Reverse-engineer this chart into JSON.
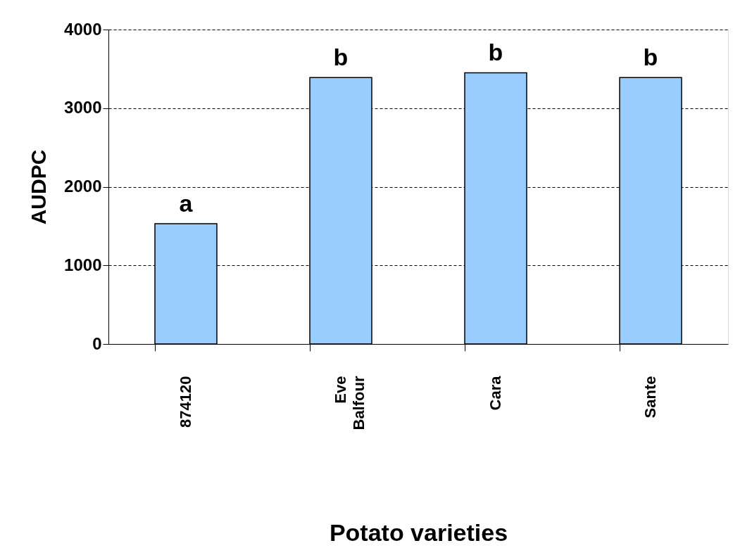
{
  "chart_data": {
    "type": "bar",
    "xlabel": "Potato varieties",
    "ylabel": "AUDPC",
    "categories": [
      "874120",
      "Eve Balfour",
      "Cara",
      "Sante"
    ],
    "values": [
      1530,
      3390,
      3450,
      3390
    ],
    "color": "#99ccff",
    "ylim": [
      0,
      4000
    ],
    "yticks": [
      0,
      1000,
      2000,
      3000,
      4000
    ],
    "grid": "y",
    "annotations": [
      "a",
      "b",
      "b",
      "b"
    ]
  }
}
